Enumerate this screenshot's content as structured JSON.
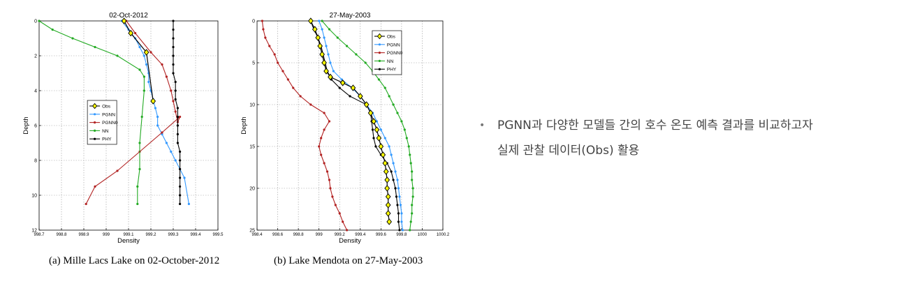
{
  "captions": {
    "a": "(a) Mille Lacs Lake on 02-October-2012",
    "b": "(b) Lake Mendota on 27-May-2003"
  },
  "note": {
    "bullet": "•",
    "line1": "PGNN과 다양한 모델들 간의 호수 온도 예측 결과를 비교하고자",
    "line2": "실제 관찰 데이터(Obs) 활용"
  },
  "chart_data": [
    {
      "type": "line",
      "title": "02-Oct-2012",
      "xlabel": "Density",
      "ylabel": "Depth",
      "xlim": [
        998.7,
        999.5
      ],
      "ylim": [
        0,
        12
      ],
      "y_reversed": true,
      "grid": true,
      "xticks": [
        "998.7",
        "998.8",
        "998.9",
        "999",
        "999.1",
        "999.2",
        "999.3",
        "999.4",
        "999.5"
      ],
      "yticks": [
        "0",
        "2",
        "4",
        "6",
        "8",
        "10",
        "12"
      ],
      "legend": "left-center",
      "series": [
        {
          "name": "Obs",
          "color": "#000000",
          "marker": "diamond-yellow",
          "x": [
            999.08,
            999.11,
            999.18,
            999.21
          ],
          "y": [
            0,
            0.7,
            1.8,
            4.6
          ]
        },
        {
          "name": "PGNN",
          "color": "#3399ff",
          "marker": "dot",
          "x": [
            999.07,
            999.1,
            999.13,
            999.15,
            999.17,
            999.18,
            999.19,
            999.19,
            999.2,
            999.21,
            999.22,
            999.23,
            999.23,
            999.25,
            999.27,
            999.29,
            999.31,
            999.33,
            999.35,
            999.37
          ],
          "y": [
            0,
            0.5,
            1.0,
            1.5,
            2.0,
            2.5,
            3.0,
            3.5,
            4.0,
            4.5,
            5.0,
            5.5,
            6.0,
            6.5,
            7.0,
            7.5,
            8.0,
            8.5,
            9.0,
            10.5
          ]
        },
        {
          "name": "PGNN0",
          "color": "#b22222",
          "marker": "dot",
          "x": [
            999.09,
            999.13,
            999.2,
            999.25,
            999.27,
            999.29,
            999.3,
            999.31,
            999.32,
            999.33,
            999.25,
            999.15,
            999.05,
            998.95,
            998.91
          ],
          "y": [
            0,
            0.7,
            1.8,
            2.5,
            3.2,
            4.0,
            4.6,
            5.2,
            5.8,
            5.5,
            6.4,
            7.5,
            8.6,
            9.5,
            10.5
          ]
        },
        {
          "name": "NN",
          "color": "#22aa22",
          "marker": "dot",
          "x": [
            998.7,
            998.76,
            998.85,
            998.95,
            999.05,
            999.15,
            999.17,
            999.17,
            999.16,
            999.15,
            999.15,
            999.14,
            999.14
          ],
          "y": [
            0,
            0.5,
            1.0,
            1.5,
            2.0,
            2.8,
            3.2,
            4.0,
            5.5,
            7.0,
            8.5,
            9.5,
            10.5
          ]
        },
        {
          "name": "PHY",
          "color": "#000000",
          "marker": "dot",
          "x": [
            999.3,
            999.3,
            999.3,
            999.3,
            999.3,
            999.3,
            999.3,
            999.31,
            999.31,
            999.31,
            999.32,
            999.32,
            999.32,
            999.32,
            999.32,
            999.33,
            999.33,
            999.33,
            999.33,
            999.33,
            999.33,
            999.33
          ],
          "y": [
            0,
            0.5,
            1.0,
            1.5,
            2.0,
            2.5,
            3.0,
            3.5,
            4.0,
            4.5,
            5.0,
            5.5,
            6.0,
            6.5,
            7.0,
            7.5,
            8.0,
            8.5,
            9.0,
            9.5,
            10.0,
            10.5
          ]
        }
      ]
    },
    {
      "type": "line",
      "title": "27-May-2003",
      "xlabel": "Density",
      "ylabel": "Depth",
      "xlim": [
        998.4,
        1000.2
      ],
      "ylim": [
        0,
        25
      ],
      "y_reversed": true,
      "grid": true,
      "xticks": [
        "998.4",
        "998.6",
        "998.8",
        "999",
        "999.2",
        "999.4",
        "999.6",
        "999.8",
        "1000",
        "1000.2"
      ],
      "yticks": [
        "0",
        "5",
        "10",
        "15",
        "20",
        "25"
      ],
      "legend": "top-right",
      "series": [
        {
          "name": "Obs",
          "color": "#000000",
          "marker": "diamond-yellow",
          "x": [
            998.92,
            998.96,
            998.99,
            999.01,
            999.03,
            999.05,
            999.07,
            999.11,
            999.23,
            999.33,
            999.4,
            999.46,
            999.5,
            999.53,
            999.56,
            999.58,
            999.6,
            999.62,
            999.64,
            999.65,
            999.66,
            999.66,
            999.67,
            999.67,
            999.67,
            999.68
          ],
          "y": [
            0,
            1,
            2,
            3,
            4,
            5,
            6,
            6.7,
            7.4,
            8.0,
            9,
            10,
            11,
            12,
            13,
            14,
            15,
            16,
            17,
            18,
            19,
            20,
            21,
            22,
            23,
            24
          ]
        },
        {
          "name": "PGNN",
          "color": "#3399ff",
          "marker": "dot",
          "x": [
            999.0,
            999.03,
            999.05,
            999.07,
            999.09,
            999.11,
            999.14,
            999.22,
            999.32,
            999.4,
            999.46,
            999.52,
            999.56,
            999.6,
            999.64,
            999.68,
            999.7,
            999.72,
            999.74,
            999.76,
            999.77,
            999.78,
            999.79,
            999.8,
            999.8,
            999.81
          ],
          "y": [
            0,
            1,
            2,
            3,
            4,
            5,
            6,
            7,
            8,
            9,
            10,
            11,
            12,
            13,
            14,
            15,
            16,
            17,
            18,
            19,
            20,
            21,
            22,
            23,
            24,
            25
          ]
        },
        {
          "name": "PGNN0",
          "color": "#b22222",
          "marker": "dot",
          "x": [
            998.45,
            998.46,
            998.48,
            998.52,
            998.57,
            998.6,
            998.65,
            998.7,
            998.75,
            998.82,
            998.92,
            999.05,
            999.1,
            999.05,
            999.02,
            999.0,
            999.02,
            999.05,
            999.08,
            999.1,
            999.11,
            999.13,
            999.16,
            999.2,
            999.23,
            999.27
          ],
          "y": [
            0,
            1,
            2,
            3,
            4,
            5,
            6,
            7,
            8,
            9,
            10,
            11,
            12,
            13,
            14,
            15,
            16,
            17,
            18,
            19,
            20,
            21,
            22,
            23,
            24,
            25
          ]
        },
        {
          "name": "NN",
          "color": "#22aa22",
          "marker": "dot",
          "x": [
            999.03,
            999.1,
            999.18,
            999.27,
            999.36,
            999.45,
            999.52,
            999.58,
            999.64,
            999.68,
            999.72,
            999.76,
            999.8,
            999.83,
            999.85,
            999.87,
            999.88,
            999.89,
            999.9,
            999.9,
            999.91,
            999.91,
            999.9,
            999.9,
            999.89,
            999.88
          ],
          "y": [
            0,
            1,
            2,
            3,
            4,
            5,
            6,
            7,
            8,
            9,
            10,
            11,
            12,
            13,
            14,
            15,
            16,
            17,
            18,
            19,
            20,
            21,
            22,
            23,
            24,
            25
          ]
        },
        {
          "name": "PHY",
          "color": "#000000",
          "marker": "dot",
          "x": [
            998.92,
            998.95,
            998.99,
            999.02,
            999.04,
            999.06,
            999.08,
            999.12,
            999.2,
            999.3,
            999.46,
            999.5,
            999.51,
            999.52,
            999.53,
            999.55,
            999.6,
            999.66,
            999.7,
            999.72,
            999.74,
            999.75,
            999.76,
            999.77,
            999.77,
            999.78
          ],
          "y": [
            0,
            1,
            2,
            3,
            4,
            5,
            6,
            7,
            8,
            9,
            10,
            11,
            12,
            13,
            14,
            15,
            16,
            17,
            18,
            19,
            20,
            21,
            22,
            23,
            24,
            25
          ]
        }
      ]
    }
  ]
}
